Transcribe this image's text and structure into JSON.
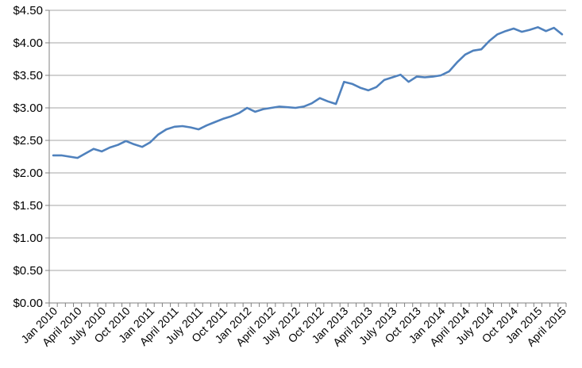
{
  "chart_data": {
    "type": "line",
    "title": "",
    "xlabel": "",
    "ylabel": "",
    "ylim": [
      0,
      4.5
    ],
    "y_step": 0.5,
    "grid": "horizontal-only",
    "legend": "none",
    "line_color": "#4F81BD",
    "gridline_color": "#A6A6A6",
    "axis_color": "#808080",
    "label_color": "#000000",
    "y_tick_labels": [
      "$0.00",
      "$0.50",
      "$1.00",
      "$1.50",
      "$2.00",
      "$2.50",
      "$3.00",
      "$3.50",
      "$4.00",
      "$4.50"
    ],
    "x_tick_labels": [
      "Jan 2010",
      "April 2010",
      "July 2010",
      "Oct 2010",
      "Jan 2011",
      "April 2011",
      "July 2011",
      "Oct 2011",
      "Jan 2012",
      "April 2012",
      "July 2012",
      "Oct 2012",
      "Jan 2013",
      "April 2013",
      "July 2013",
      "Oct 2013",
      "Jan 2014",
      "April 2014",
      "July 2014",
      "Oct 2014",
      "Jan 2015",
      "April 2015"
    ],
    "x_label_every": 3,
    "categories": [
      "Jan 2010",
      "Feb 2010",
      "Mar 2010",
      "April 2010",
      "May 2010",
      "June 2010",
      "July 2010",
      "Aug 2010",
      "Sep 2010",
      "Oct 2010",
      "Nov 2010",
      "Dec 2010",
      "Jan 2011",
      "Feb 2011",
      "Mar 2011",
      "April 2011",
      "May 2011",
      "June 2011",
      "July 2011",
      "Aug 2011",
      "Sep 2011",
      "Oct 2011",
      "Nov 2011",
      "Dec 2011",
      "Jan 2012",
      "Feb 2012",
      "Mar 2012",
      "April 2012",
      "May 2012",
      "June 2012",
      "July 2012",
      "Aug 2012",
      "Sep 2012",
      "Oct 2012",
      "Nov 2012",
      "Dec 2012",
      "Jan 2013",
      "Feb 2013",
      "Mar 2013",
      "April 2013",
      "May 2013",
      "June 2013",
      "July 2013",
      "Aug 2013",
      "Sep 2013",
      "Oct 2013",
      "Nov 2013",
      "Dec 2013",
      "Jan 2014",
      "Feb 2014",
      "Mar 2014",
      "April 2014",
      "May 2014",
      "June 2014",
      "July 2014",
      "Aug 2014",
      "Sep 2014",
      "Oct 2014",
      "Nov 2014",
      "Dec 2014",
      "Jan 2015",
      "Feb 2015",
      "Mar 2015",
      "April 2015"
    ],
    "series": [
      {
        "name": "",
        "values": [
          2.27,
          2.27,
          2.25,
          2.23,
          2.3,
          2.37,
          2.33,
          2.39,
          2.43,
          2.49,
          2.44,
          2.4,
          2.47,
          2.59,
          2.67,
          2.71,
          2.72,
          2.7,
          2.67,
          2.73,
          2.78,
          2.83,
          2.87,
          2.92,
          3.0,
          2.94,
          2.98,
          3.0,
          3.02,
          3.01,
          3.0,
          3.02,
          3.07,
          3.15,
          3.1,
          3.06,
          3.4,
          3.37,
          3.31,
          3.27,
          3.32,
          3.43,
          3.47,
          3.51,
          3.4,
          3.48,
          3.47,
          3.48,
          3.5,
          3.56,
          3.7,
          3.82,
          3.88,
          3.9,
          4.03,
          4.13,
          4.18,
          4.22,
          4.17,
          4.2,
          4.24,
          4.18,
          4.23,
          4.13
        ]
      }
    ]
  }
}
